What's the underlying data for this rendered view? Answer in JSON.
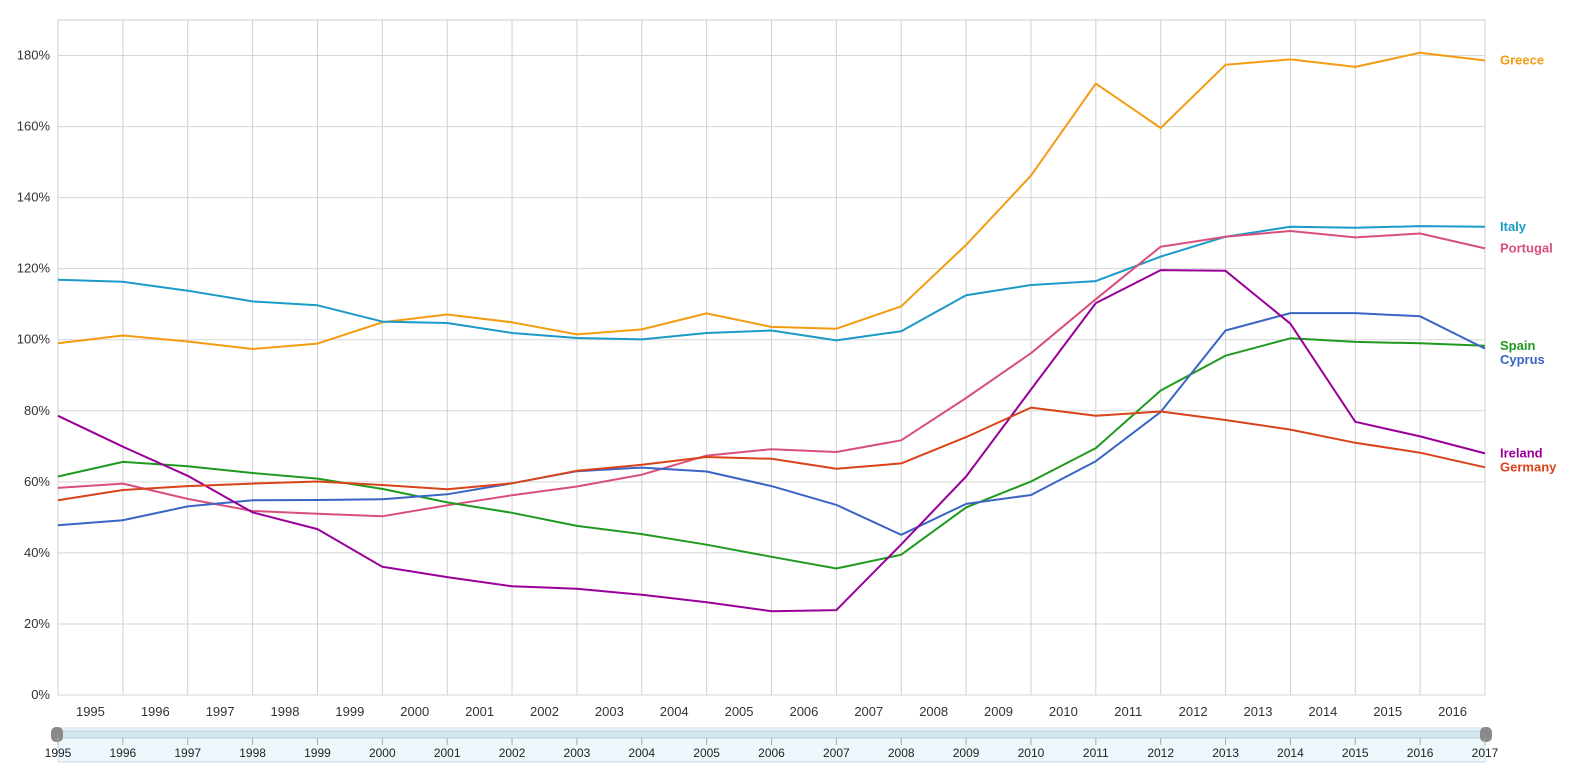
{
  "chart_data": {
    "type": "line",
    "title": "",
    "xlabel": "",
    "ylabel": "",
    "x": [
      1995,
      1996,
      1997,
      1998,
      1999,
      2000,
      2001,
      2002,
      2003,
      2004,
      2005,
      2006,
      2007,
      2008,
      2009,
      2010,
      2011,
      2012,
      2013,
      2014,
      2015,
      2016,
      2017
    ],
    "x_tick_labels": [
      "1995",
      "1996",
      "1997",
      "1998",
      "1999",
      "2000",
      "2001",
      "2002",
      "2003",
      "2004",
      "2005",
      "2006",
      "2007",
      "2008",
      "2009",
      "2010",
      "2011",
      "2012",
      "2013",
      "2014",
      "2015",
      "2016"
    ],
    "ylim": [
      0,
      190
    ],
    "y_ticks": [
      0,
      20,
      40,
      60,
      80,
      100,
      120,
      140,
      160,
      180
    ],
    "y_tick_labels": [
      "0%",
      "20%",
      "40%",
      "60%",
      "80%",
      "100%",
      "120%",
      "140%",
      "160%",
      "180%"
    ],
    "grid": true,
    "legend_position": "right, at series end",
    "series": [
      {
        "name": "Greece",
        "color": "#f39c12",
        "values": [
          99.0,
          101.2,
          99.5,
          97.4,
          98.9,
          104.9,
          107.1,
          104.9,
          101.5,
          102.9,
          107.4,
          103.6,
          103.1,
          109.4,
          126.7,
          146.2,
          172.1,
          159.6,
          177.4,
          178.9,
          176.8,
          180.8,
          178.6
        ]
      },
      {
        "name": "Italy",
        "color": "#1a9ac6",
        "values": [
          116.9,
          116.3,
          113.8,
          110.8,
          109.7,
          105.1,
          104.7,
          101.9,
          100.5,
          100.1,
          101.9,
          102.6,
          99.8,
          102.4,
          112.5,
          115.4,
          116.5,
          123.4,
          129.0,
          131.8,
          131.5,
          132.0,
          131.8
        ]
      },
      {
        "name": "Portugal",
        "color": "#d94f7c",
        "values": [
          58.3,
          59.5,
          55.2,
          51.8,
          51.0,
          50.3,
          53.4,
          56.2,
          58.7,
          62.0,
          67.4,
          69.2,
          68.4,
          71.7,
          83.6,
          96.2,
          111.4,
          126.2,
          129.0,
          130.6,
          128.8,
          129.9,
          125.7
        ]
      },
      {
        "name": "Spain",
        "color": "#1f9a1f",
        "values": [
          61.5,
          65.6,
          64.4,
          62.5,
          60.9,
          58.0,
          54.2,
          51.3,
          47.6,
          45.3,
          42.3,
          38.9,
          35.6,
          39.5,
          52.8,
          60.1,
          69.5,
          85.7,
          95.5,
          100.4,
          99.4,
          99.0,
          98.3
        ]
      },
      {
        "name": "Cyprus",
        "color": "#3b65c4",
        "values": [
          47.8,
          49.2,
          53.1,
          54.8,
          54.9,
          55.1,
          56.5,
          59.6,
          63.0,
          64.0,
          62.9,
          58.8,
          53.5,
          45.1,
          53.8,
          56.3,
          65.8,
          79.7,
          102.6,
          107.5,
          107.5,
          106.6,
          97.5
        ]
      },
      {
        "name": "Ireland",
        "color": "#990099",
        "values": [
          78.6,
          69.9,
          61.7,
          51.4,
          46.7,
          36.1,
          33.2,
          30.6,
          29.9,
          28.2,
          26.1,
          23.6,
          23.9,
          42.4,
          61.5,
          86.0,
          110.3,
          119.6,
          119.4,
          104.5,
          76.9,
          72.8,
          68.0
        ]
      },
      {
        "name": "Germany",
        "color": "#d9421a",
        "values": [
          54.8,
          57.7,
          58.8,
          59.5,
          60.1,
          59.1,
          57.9,
          59.6,
          63.1,
          64.8,
          67.0,
          66.5,
          63.7,
          65.2,
          72.6,
          80.9,
          78.6,
          79.8,
          77.4,
          74.7,
          71.0,
          68.2,
          64.1
        ]
      }
    ],
    "range_selector": {
      "labels": [
        "1995",
        "1996",
        "1997",
        "1998",
        "1999",
        "2000",
        "2001",
        "2002",
        "2003",
        "2004",
        "2005",
        "2006",
        "2007",
        "2008",
        "2009",
        "2010",
        "2011",
        "2012",
        "2013",
        "2014",
        "2015",
        "2016",
        "2017"
      ],
      "selected_start": 1995,
      "selected_end": 2017
    }
  }
}
